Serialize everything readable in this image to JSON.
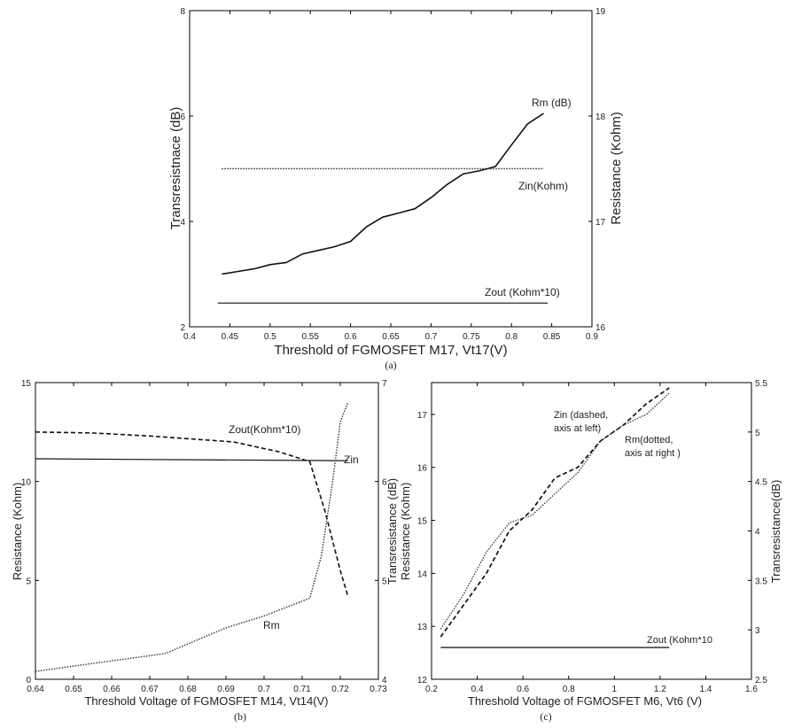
{
  "charts": [
    {
      "type": "line",
      "caption": "(a)",
      "xlabel": "Threshold of FGMOSFET M17, Vt17(V)",
      "ylabel_left": "Transresistnace (dB)",
      "ylabel_right": "Resistance (Kohm)",
      "xlim": [
        0.4,
        0.9
      ],
      "ylim_left": [
        2,
        8
      ],
      "ylim_right": [
        16,
        19
      ],
      "xticks": [
        "0.4",
        "0.45",
        "0.5",
        "0.55",
        "0.6",
        "0.65",
        "0.7",
        "0.75",
        "0.8",
        "0.85",
        "0.9"
      ],
      "yticks_left": [
        "2",
        "4",
        "6",
        "8"
      ],
      "yticks_right": [
        "16",
        "17",
        "18",
        "19"
      ],
      "series": [
        {
          "name": "Rm (dB)",
          "axis": "left",
          "style": "solid",
          "width": 1.6,
          "x": [
            0.44,
            0.46,
            0.48,
            0.5,
            0.51,
            0.52,
            0.54,
            0.56,
            0.58,
            0.6,
            0.62,
            0.64,
            0.66,
            0.68,
            0.7,
            0.72,
            0.74,
            0.76,
            0.78,
            0.8,
            0.82,
            0.84
          ],
          "y": [
            3.0,
            3.05,
            3.1,
            3.18,
            3.2,
            3.22,
            3.38,
            3.45,
            3.52,
            3.62,
            3.9,
            4.08,
            4.16,
            4.24,
            4.45,
            4.7,
            4.9,
            4.96,
            5.04,
            5.45,
            5.85,
            6.05
          ]
        },
        {
          "name": "Zin(Kohm)",
          "axis": "left",
          "style": "dotted",
          "width": 1.4,
          "x": [
            0.44,
            0.84
          ],
          "y": [
            5.0,
            5.0
          ]
        },
        {
          "name": "Zout (Kohm*10)",
          "axis": "left",
          "style": "solid",
          "width": 1.2,
          "x": [
            0.435,
            0.845
          ],
          "y": [
            2.45,
            2.45
          ]
        }
      ],
      "annotations": [
        "Rm (dB)",
        "Zin(Kohm)",
        "Zout (Kohm*10)"
      ]
    },
    {
      "type": "line",
      "caption": "(b)",
      "xlabel": "Threshold Voltage of FGMOSFET M14, Vt14(V)",
      "ylabel_left": "Resistance (Kohm)",
      "xlim": [
        0.64,
        0.73
      ],
      "ylim_left": [
        0,
        15
      ],
      "ylim_right": [
        4,
        7
      ],
      "xticks": [
        "0.64",
        "0.65",
        "0.66",
        "0.67",
        "0.68",
        "0.69",
        "0.7",
        "0.71",
        "0.72",
        "0.73"
      ],
      "yticks_left": [
        "0",
        "5",
        "10",
        "15"
      ],
      "yticks_right": [
        "4",
        "5",
        "6",
        "7"
      ],
      "series": [
        {
          "name": "Zout(Kohm*10)",
          "axis": "left",
          "style": "dashed",
          "width": 1.6,
          "x": [
            0.64,
            0.655,
            0.67,
            0.692,
            0.704,
            0.712,
            0.716,
            0.72,
            0.722
          ],
          "y": [
            12.5,
            12.45,
            12.3,
            12.0,
            11.5,
            11.0,
            8.5,
            5.5,
            4.2
          ]
        },
        {
          "name": "Zin",
          "axis": "left",
          "style": "solid",
          "width": 1.2,
          "x": [
            0.64,
            0.722
          ],
          "y": [
            11.15,
            11.05
          ]
        },
        {
          "name": "Rm",
          "axis": "left",
          "style": "dotted",
          "width": 1.4,
          "x": [
            0.64,
            0.655,
            0.674,
            0.69,
            0.7,
            0.712,
            0.715,
            0.718,
            0.72,
            0.722
          ],
          "y": [
            0.4,
            0.8,
            1.3,
            2.6,
            3.2,
            4.1,
            6.2,
            10.0,
            13.0,
            14.0
          ]
        }
      ],
      "annotations": [
        "Zout(Kohm*10)",
        "Zin",
        "Rm"
      ]
    },
    {
      "type": "line",
      "caption": "(c)",
      "xlabel": "Threshold Voltage of FGMOSFET M6, Vt6 (V)",
      "ylabel_left": "Resistance (Kohm)",
      "ylabel_left2": "Transresistance (dB)",
      "ylabel_right": "Transresistance(dB)",
      "xlim": [
        0.2,
        1.6
      ],
      "ylim_left": [
        12,
        17.6
      ],
      "ylim_right": [
        2.5,
        5.5
      ],
      "xticks": [
        "0.2",
        "0.4",
        "0.6",
        "0.8",
        "1",
        "1.2",
        "1.4",
        "1.6"
      ],
      "yticks_left": [
        "12",
        "13",
        "14",
        "15",
        "16",
        "17"
      ],
      "yticks_right": [
        "2.5",
        "3",
        "3.5",
        "4",
        "4.5",
        "5",
        "5.5"
      ],
      "series": [
        {
          "name": "Zin (dashed, axis at left)",
          "axis": "left",
          "style": "dashed",
          "width": 1.7,
          "x": [
            0.24,
            0.34,
            0.44,
            0.54,
            0.64,
            0.74,
            0.84,
            0.94,
            1.04,
            1.14,
            1.24
          ],
          "y": [
            12.8,
            13.4,
            14.0,
            14.8,
            15.2,
            15.8,
            16.0,
            16.5,
            16.8,
            17.2,
            17.5
          ]
        },
        {
          "name": "Rm(dotted, axis at right )",
          "axis": "left",
          "style": "dotted",
          "width": 1.3,
          "x": [
            0.24,
            0.34,
            0.44,
            0.54,
            0.64,
            0.74,
            0.84,
            0.94,
            1.04,
            1.14,
            1.24
          ],
          "y": [
            12.95,
            13.6,
            14.4,
            14.95,
            15.1,
            15.5,
            15.9,
            16.5,
            16.8,
            17.0,
            17.4
          ]
        },
        {
          "name": "Zout (Kohm*10",
          "axis": "left",
          "style": "solid",
          "width": 1.2,
          "x": [
            0.24,
            1.24
          ],
          "y": [
            12.6,
            12.6
          ]
        }
      ],
      "annotations": [
        "Zin (dashed,",
        "axis at left)",
        "Rm(dotted,",
        "axis at right )",
        "Zout (Kohm*10"
      ]
    }
  ]
}
